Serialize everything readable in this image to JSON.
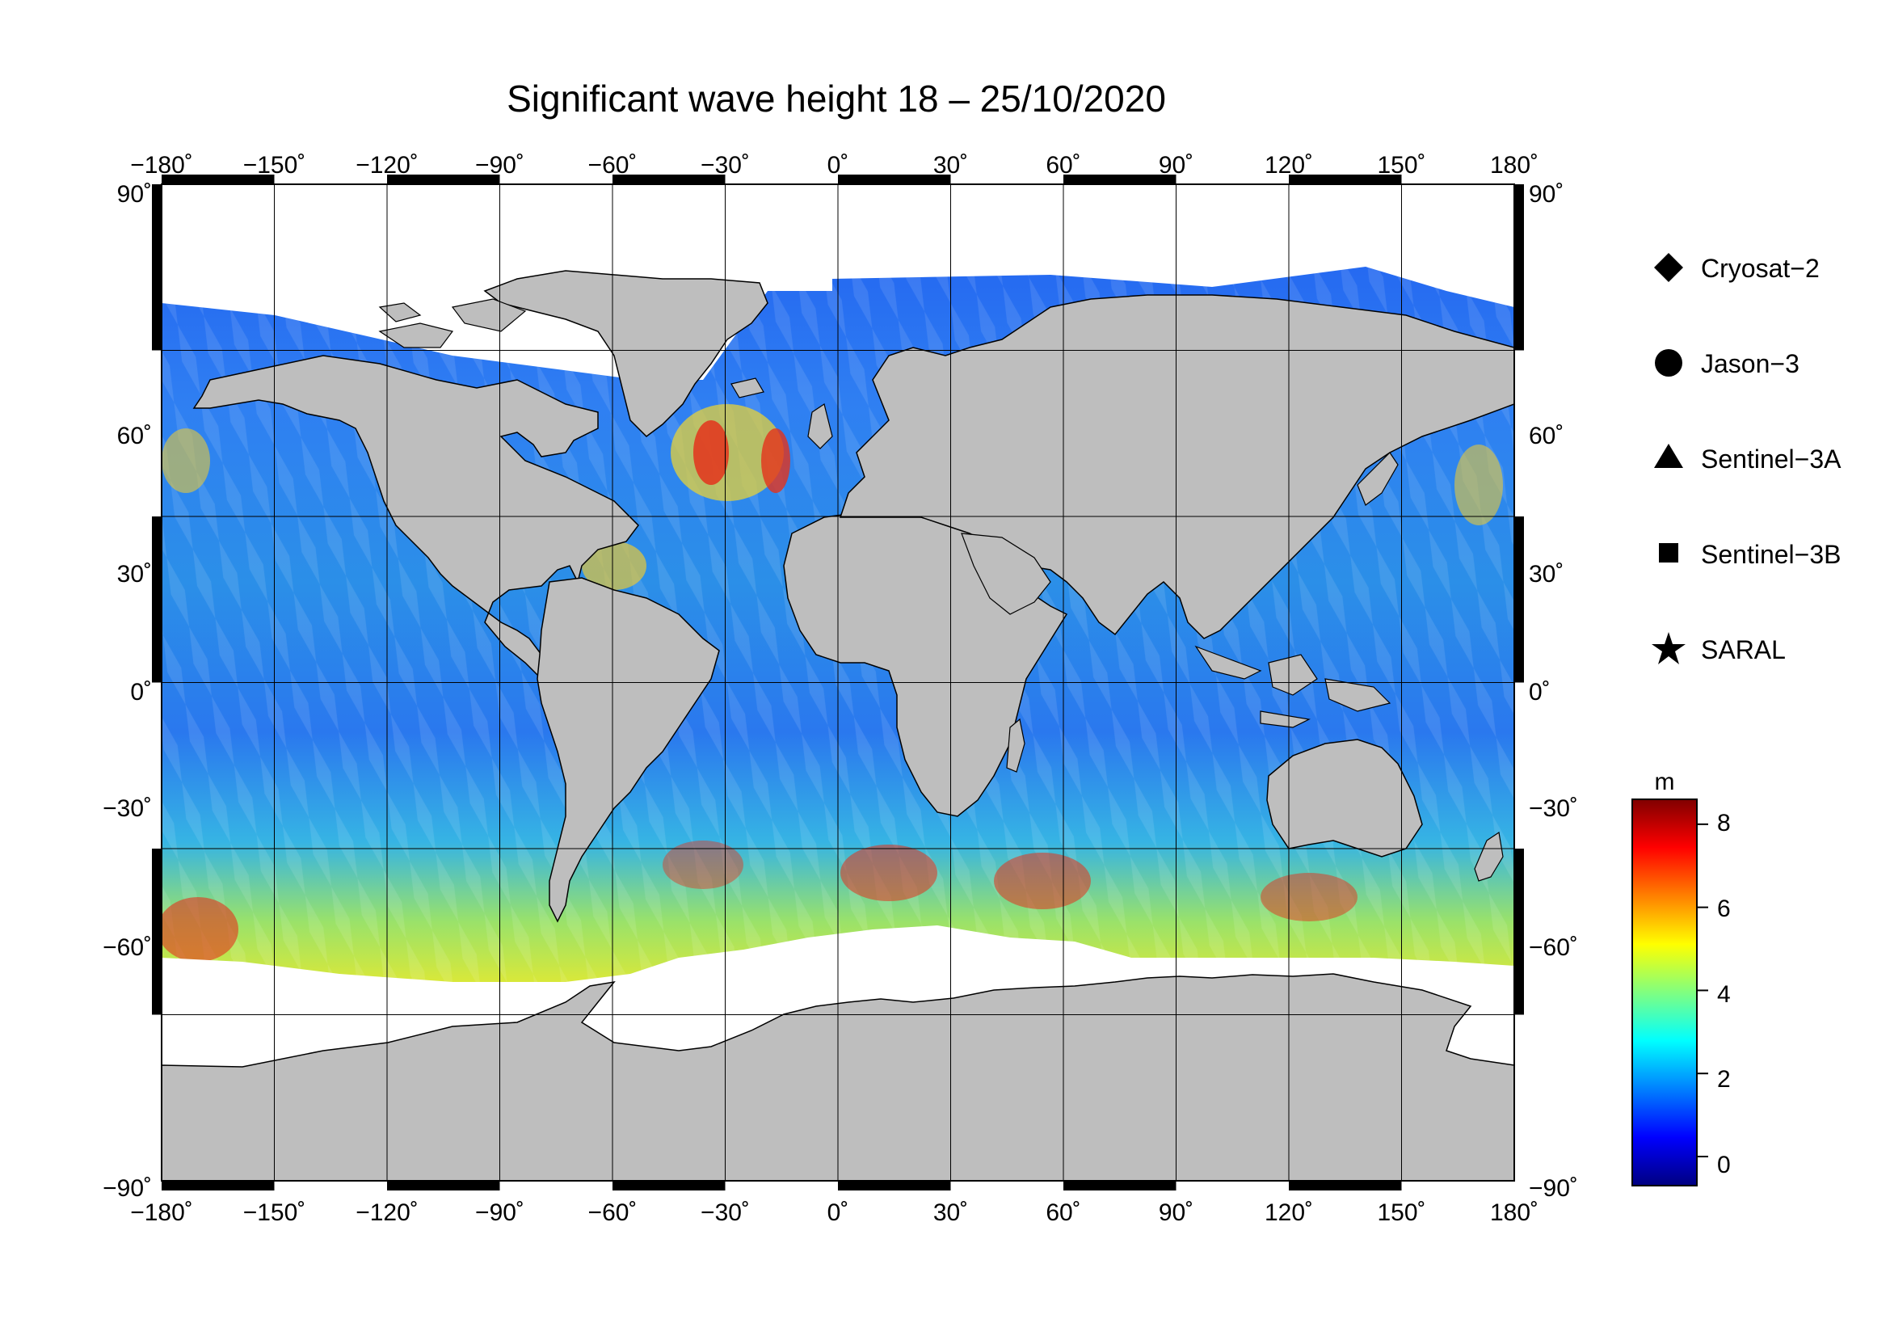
{
  "title": "Significant wave height 18 – 25/10/2020",
  "map": {
    "projection": "equirectangular",
    "lon_range": [
      -180,
      180
    ],
    "lat_range": [
      -90,
      90
    ],
    "lon_ticks": [
      "−180˚",
      "−150˚",
      "−120˚",
      "−90˚",
      "−60˚",
      "−30˚",
      "0˚",
      "30˚",
      "60˚",
      "90˚",
      "120˚",
      "150˚",
      "180˚"
    ],
    "lat_ticks": [
      "90˚",
      "60˚",
      "30˚",
      "0˚",
      "−30˚",
      "−60˚",
      "−90˚"
    ],
    "land_color": "#bebebe",
    "ice_color": "#ffffff",
    "grid": true
  },
  "legend": {
    "items": [
      {
        "label": "Cryosat−2",
        "symbol": "diamond-icon"
      },
      {
        "label": "Jason−3",
        "symbol": "circle-icon"
      },
      {
        "label": "Sentinel−3A",
        "symbol": "triangle-icon"
      },
      {
        "label": "Sentinel−3B",
        "symbol": "square-icon"
      },
      {
        "label": "SARAL",
        "symbol": "star-icon"
      }
    ]
  },
  "colorbar": {
    "unit": "m",
    "min": -0.7,
    "max": 8.6,
    "ticks": [
      {
        "value": 8,
        "label": "8"
      },
      {
        "value": 6,
        "label": "6"
      },
      {
        "value": 4,
        "label": "4"
      },
      {
        "value": 2,
        "label": "2"
      },
      {
        "value": 0,
        "label": "0"
      }
    ],
    "colors": [
      "#000080",
      "#0000ff",
      "#0080ff",
      "#00ffff",
      "#80ff80",
      "#ffff00",
      "#ff8000",
      "#ff0000",
      "#800000"
    ]
  }
}
